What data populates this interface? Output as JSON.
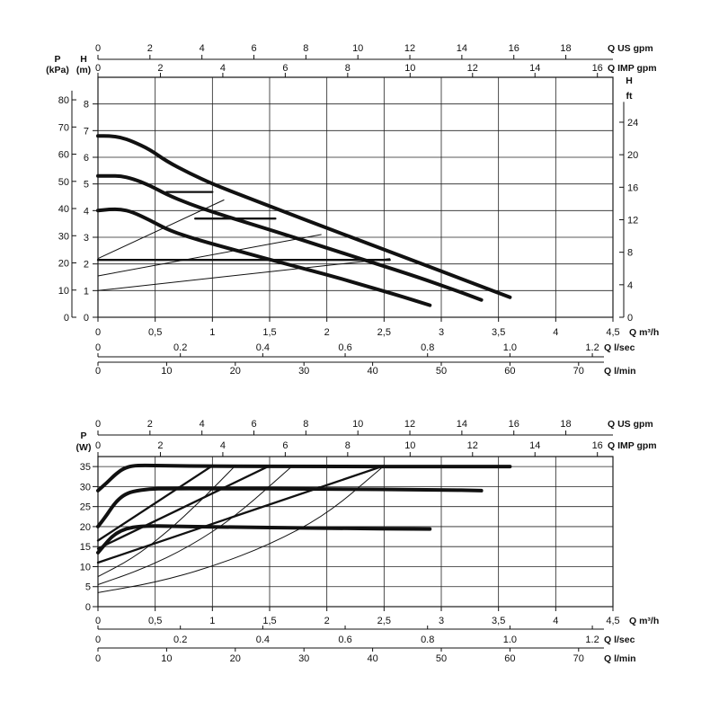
{
  "chart_data": [
    {
      "type": "line",
      "axes": {
        "bottom_q_m3h": {
          "label": "Q m³/h",
          "min": 0,
          "max": 4.5,
          "ticks": [
            0,
            0.5,
            1,
            1.5,
            2,
            2.5,
            3,
            3.5,
            4,
            4.5
          ],
          "tick_labels": [
            "0",
            "0,5",
            "1",
            "1,5",
            "2",
            "2,5",
            "3",
            "3,5",
            "4",
            "4,5"
          ]
        },
        "bottom_q_lsec": {
          "label": "Q l/sec",
          "ticks": [
            0,
            0.2,
            0.4,
            0.6,
            0.8,
            1.0,
            1.2
          ],
          "tick_labels": [
            "0",
            "0.2",
            "0.4",
            "0.6",
            "0.8",
            "1.0",
            "1.2"
          ]
        },
        "bottom_q_lmin": {
          "label": "Q l/min",
          "ticks": [
            0,
            10,
            20,
            30,
            40,
            50,
            60,
            70
          ],
          "tick_labels": [
            "0",
            "10",
            "20",
            "30",
            "40",
            "50",
            "60",
            "70"
          ]
        },
        "top_us_gpm": {
          "label": "Q US gpm",
          "ticks": [
            0,
            2,
            4,
            6,
            8,
            10,
            12,
            14,
            16,
            18
          ],
          "tick_labels": [
            "0",
            "2",
            "4",
            "6",
            "8",
            "10",
            "12",
            "14",
            "16",
            "18"
          ]
        },
        "top_imp_gpm": {
          "label": "Q IMP gpm",
          "ticks": [
            0,
            2,
            4,
            6,
            8,
            10,
            12,
            14,
            16
          ],
          "tick_labels": [
            "0",
            "2",
            "4",
            "6",
            "8",
            "10",
            "12",
            "14",
            "16"
          ]
        },
        "left_h_m": {
          "label": "H",
          "unit": "(m)",
          "min": 0,
          "max": 9,
          "ticks": [
            0,
            1,
            2,
            3,
            4,
            5,
            6,
            7,
            8
          ],
          "tick_labels": [
            "0",
            "1",
            "2",
            "3",
            "4",
            "5",
            "6",
            "7",
            "8"
          ]
        },
        "left_p_kpa": {
          "label": "P",
          "unit": "(kPa)",
          "ticks": [
            0,
            10,
            20,
            30,
            40,
            50,
            60,
            70,
            80
          ],
          "tick_labels": [
            "0",
            "10",
            "20",
            "30",
            "40",
            "50",
            "60",
            "70",
            "80"
          ]
        },
        "right_h_ft": {
          "label": "H",
          "unit": "ft",
          "ticks": [
            0,
            4,
            8,
            12,
            16,
            20,
            24
          ],
          "tick_labels": [
            "0",
            "4",
            "8",
            "12",
            "16",
            "20",
            "24"
          ]
        }
      },
      "grid": true,
      "series": [
        {
          "style": "thick",
          "x": [
            0,
            0.1,
            0.2,
            0.3,
            0.45,
            0.6,
            0.8,
            1.0,
            1.3,
            1.6,
            2.0,
            2.4,
            2.8,
            3.2,
            3.6
          ],
          "y": [
            6.8,
            6.8,
            6.75,
            6.6,
            6.3,
            5.85,
            5.4,
            5.0,
            4.5,
            4.0,
            3.35,
            2.7,
            2.05,
            1.4,
            0.75
          ]
        },
        {
          "style": "thick",
          "x": [
            0,
            0.1,
            0.2,
            0.3,
            0.45,
            0.6,
            0.8,
            1.0,
            1.3,
            1.6,
            2.0,
            2.4,
            2.8,
            3.1,
            3.35
          ],
          "y": [
            5.3,
            5.3,
            5.3,
            5.2,
            4.95,
            4.6,
            4.25,
            3.95,
            3.55,
            3.15,
            2.6,
            2.05,
            1.5,
            1.05,
            0.65
          ]
        },
        {
          "style": "thick",
          "x": [
            0,
            0.1,
            0.2,
            0.3,
            0.45,
            0.6,
            0.8,
            1.0,
            1.3,
            1.6,
            2.0,
            2.4,
            2.6,
            2.9
          ],
          "y": [
            4.0,
            4.05,
            4.05,
            3.95,
            3.65,
            3.3,
            3.0,
            2.75,
            2.4,
            2.05,
            1.6,
            1.1,
            0.85,
            0.45
          ]
        },
        {
          "style": "medium",
          "x": [
            0.6,
            1.0
          ],
          "y": [
            4.7,
            4.7
          ]
        },
        {
          "style": "medium",
          "x": [
            0.85,
            1.55
          ],
          "y": [
            3.7,
            3.7
          ]
        },
        {
          "style": "medium",
          "x": [
            0,
            2.55
          ],
          "y": [
            2.15,
            2.15
          ]
        },
        {
          "style": "thin",
          "x": [
            0,
            1.1
          ],
          "y": [
            2.2,
            4.4
          ]
        },
        {
          "style": "thin",
          "x": [
            0,
            1.95
          ],
          "y": [
            1.55,
            3.1
          ]
        },
        {
          "style": "thin",
          "x": [
            0,
            2.55
          ],
          "y": [
            1.0,
            2.2
          ]
        }
      ]
    },
    {
      "type": "line",
      "axes": {
        "bottom_q_m3h": {
          "label": "Q m³/h",
          "min": 0,
          "max": 4.5,
          "ticks": [
            0,
            0.5,
            1,
            1.5,
            2,
            2.5,
            3,
            3.5,
            4,
            4.5
          ],
          "tick_labels": [
            "0",
            "0,5",
            "1",
            "1,5",
            "2",
            "2,5",
            "3",
            "3,5",
            "4",
            "4,5"
          ]
        },
        "bottom_q_lsec": {
          "label": "Q l/sec",
          "ticks": [
            0,
            0.2,
            0.4,
            0.6,
            0.8,
            1.0,
            1.2
          ],
          "tick_labels": [
            "0",
            "0.2",
            "0.4",
            "0.6",
            "0.8",
            "1.0",
            "1.2"
          ]
        },
        "bottom_q_lmin": {
          "label": "Q l/min",
          "ticks": [
            0,
            10,
            20,
            30,
            40,
            50,
            60,
            70
          ],
          "tick_labels": [
            "0",
            "10",
            "20",
            "30",
            "40",
            "50",
            "60",
            "70"
          ]
        },
        "top_us_gpm": {
          "label": "Q US gpm",
          "ticks": [
            0,
            2,
            4,
            6,
            8,
            10,
            12,
            14,
            16,
            18
          ],
          "tick_labels": [
            "0",
            "2",
            "4",
            "6",
            "8",
            "10",
            "12",
            "14",
            "16",
            "18"
          ]
        },
        "top_imp_gpm": {
          "label": "Q IMP gpm",
          "ticks": [
            0,
            2,
            4,
            6,
            8,
            10,
            12,
            14,
            16
          ],
          "tick_labels": [
            "0",
            "2",
            "4",
            "6",
            "8",
            "10",
            "12",
            "14",
            "16"
          ]
        },
        "left_p_w": {
          "label": "P",
          "unit": "(W)",
          "min": 0,
          "max": 37.5,
          "ticks": [
            0,
            5,
            10,
            15,
            20,
            25,
            30,
            35
          ],
          "tick_labels": [
            "0",
            "5",
            "10",
            "15",
            "20",
            "25",
            "30",
            "35"
          ]
        }
      },
      "grid": true,
      "series": [
        {
          "style": "thick",
          "x": [
            0,
            0.08,
            0.15,
            0.22,
            0.3,
            0.4,
            0.6,
            1.0,
            2.0,
            3.0,
            3.6
          ],
          "y": [
            29,
            31,
            33,
            34.5,
            35.2,
            35.3,
            35.2,
            35.1,
            35.0,
            35.0,
            35.0
          ]
        },
        {
          "style": "thick",
          "x": [
            0,
            0.08,
            0.15,
            0.22,
            0.3,
            0.45,
            0.6,
            1.0,
            2.0,
            3.0,
            3.35
          ],
          "y": [
            20,
            23,
            26,
            27.8,
            28.8,
            29.4,
            29.5,
            29.5,
            29.4,
            29.2,
            29.0
          ]
        },
        {
          "style": "thick",
          "x": [
            0,
            0.06,
            0.12,
            0.2,
            0.3,
            0.45,
            0.6,
            1.0,
            2.0,
            2.9
          ],
          "y": [
            13.5,
            15.5,
            17.5,
            19.0,
            19.9,
            20.2,
            20.1,
            19.9,
            19.6,
            19.4
          ]
        },
        {
          "style": "medium",
          "x": [
            0,
            1.0
          ],
          "y": [
            16.5,
            35.2
          ]
        },
        {
          "style": "medium",
          "x": [
            0,
            1.5
          ],
          "y": [
            14.5,
            35.2
          ]
        },
        {
          "style": "medium",
          "x": [
            0,
            2.5
          ],
          "y": [
            11.0,
            35.2
          ]
        },
        {
          "style": "thin",
          "x": [
            0,
            0.3,
            0.6,
            0.9,
            1.2
          ],
          "y": [
            7.5,
            12.0,
            18.5,
            26.5,
            35.2
          ]
        },
        {
          "style": "thin",
          "x": [
            0,
            0.4,
            0.8,
            1.2,
            1.7
          ],
          "y": [
            5.5,
            9.5,
            15.0,
            22.5,
            35.2
          ]
        },
        {
          "style": "thin",
          "x": [
            0,
            0.5,
            1.0,
            1.5,
            2.0,
            2.5
          ],
          "y": [
            3.5,
            6.0,
            10.0,
            15.5,
            23.0,
            35.2
          ]
        }
      ]
    }
  ]
}
